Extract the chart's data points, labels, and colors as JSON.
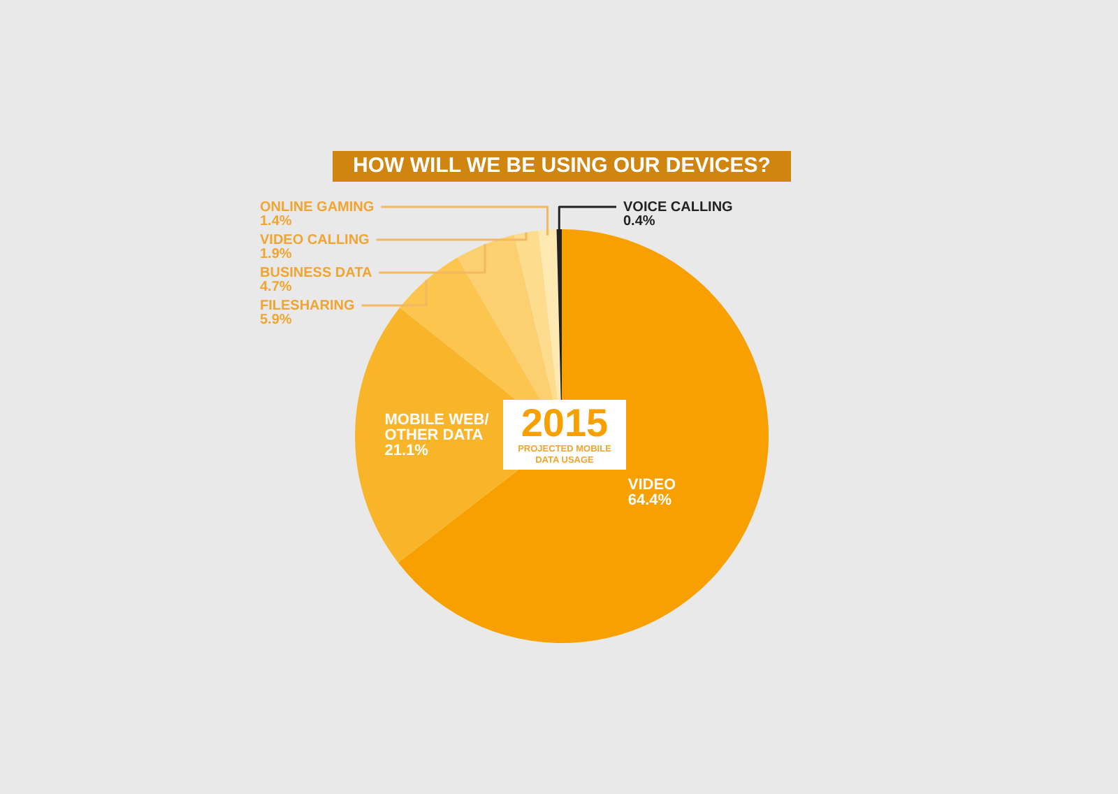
{
  "chart_data": {
    "type": "pie",
    "title": "HOW WILL WE BE USING OUR DEVICES?",
    "categories": [
      "VIDEO",
      "MOBILE WEB/ OTHER DATA",
      "FILESHARING",
      "BUSINESS DATA",
      "VIDEO CALLING",
      "ONLINE GAMING",
      "VOICE CALLING"
    ],
    "values": [
      64.4,
      21.1,
      5.9,
      4.7,
      1.9,
      1.4,
      0.4
    ],
    "value_labels": [
      "64.4%",
      "21.1%",
      "5.9%",
      "4.7%",
      "1.9%",
      "1.4%",
      "0.4%"
    ],
    "colors": [
      "#f7a000",
      "#f9b52a",
      "#fbc54e",
      "#fcd070",
      "#fddc8e",
      "#fee9b3",
      "#222222"
    ],
    "annotations": [
      "2015",
      "PROJECTED MOBILE DATA USAGE"
    ],
    "legend": false
  }
}
